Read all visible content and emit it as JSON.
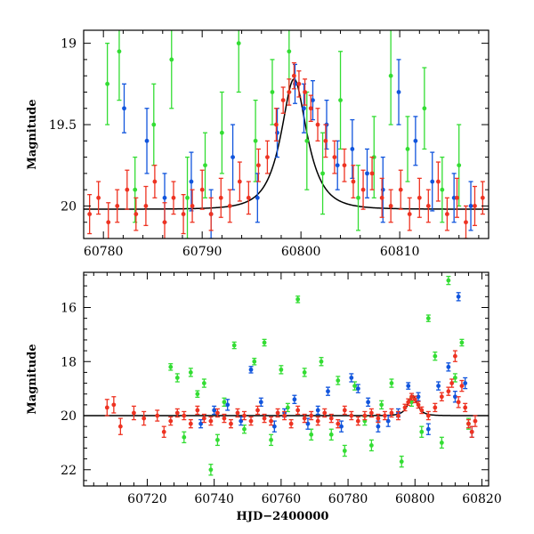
{
  "chart_data": [
    {
      "type": "scatter",
      "panel": "top",
      "title": "",
      "xlabel": "",
      "ylabel": "Magnitude",
      "xlim": [
        60778,
        60819
      ],
      "ylim": [
        20.2,
        18.92
      ],
      "y_inverted": true,
      "xticks": [
        60780,
        60790,
        60800,
        60810
      ],
      "yticks": [
        19,
        19.5,
        20
      ],
      "ytick_labels": [
        "19",
        "19.5",
        "20"
      ],
      "grid": false,
      "legend": "none",
      "model_curve": {
        "baseline": 20.02,
        "peak_mag": 19.22,
        "t0": 60799.3,
        "tE": 2.2,
        "color": "#000000"
      },
      "series": [
        {
          "color": "#33dd33",
          "x": [
            60780.4,
            60781.6,
            60783.2,
            60785.1,
            60786.9,
            60788.5,
            60790.3,
            60792.0,
            60793.7,
            60795.4,
            60797.1,
            60798.8,
            60800.6,
            60802.2,
            60804.0,
            60805.8,
            60807.4,
            60809.1,
            60810.8,
            60812.5,
            60814.3,
            60816.0
          ],
          "y": [
            19.25,
            19.05,
            19.9,
            19.5,
            19.1,
            19.95,
            19.75,
            19.55,
            19.0,
            19.6,
            19.3,
            19.05,
            19.6,
            19.8,
            19.35,
            19.95,
            19.7,
            19.2,
            19.65,
            19.4,
            19.9,
            19.75
          ],
          "err": [
            0.25,
            0.3,
            0.2,
            0.25,
            0.3,
            0.25,
            0.2,
            0.25,
            0.3,
            0.25,
            0.2,
            0.25,
            0.3,
            0.25,
            0.3,
            0.2,
            0.25,
            0.3,
            0.2,
            0.25,
            0.2,
            0.25
          ]
        },
        {
          "color": "#1155dd",
          "x": [
            60782.1,
            60784.4,
            60786.2,
            60788.9,
            60790.9,
            60793.1,
            60795.6,
            60797.6,
            60799.4,
            60800.3,
            60801.2,
            60802.6,
            60803.7,
            60805.2,
            60806.7,
            60808.3,
            60809.9,
            60811.6,
            60813.3,
            60815.5,
            60817.2
          ],
          "y": [
            19.4,
            19.6,
            19.95,
            19.85,
            20.05,
            19.7,
            19.95,
            19.55,
            19.25,
            19.4,
            19.35,
            19.5,
            19.75,
            19.65,
            19.8,
            19.9,
            19.3,
            19.6,
            19.85,
            19.95,
            20.0
          ],
          "err": [
            0.15,
            0.2,
            0.15,
            0.18,
            0.15,
            0.2,
            0.15,
            0.15,
            0.12,
            0.15,
            0.12,
            0.15,
            0.15,
            0.18,
            0.15,
            0.2,
            0.2,
            0.15,
            0.18,
            0.15,
            0.15
          ]
        },
        {
          "color": "#ee3322",
          "x": [
            60778.6,
            60779.5,
            60780.5,
            60781.4,
            60782.4,
            60783.3,
            60784.3,
            60785.2,
            60786.2,
            60787.1,
            60788.1,
            60789.0,
            60790.0,
            60790.9,
            60791.9,
            60792.8,
            60793.8,
            60794.7,
            60795.7,
            60796.6,
            60797.5,
            60798.2,
            60798.8,
            60799.3,
            60799.8,
            60800.4,
            60801.0,
            60801.7,
            60802.5,
            60803.4,
            60804.4,
            60805.3,
            60806.3,
            60807.2,
            60808.2,
            60809.1,
            60810.1,
            60811.0,
            60812.0,
            60812.9,
            60813.9,
            60814.8,
            60815.8,
            60816.7,
            60817.6,
            60818.4
          ],
          "y": [
            20.05,
            19.95,
            20.1,
            20.0,
            19.9,
            20.05,
            20.0,
            19.85,
            20.1,
            19.95,
            20.05,
            20.0,
            19.9,
            20.05,
            19.95,
            20.0,
            19.85,
            19.95,
            19.75,
            19.7,
            19.5,
            19.35,
            19.3,
            19.2,
            19.25,
            19.3,
            19.4,
            19.5,
            19.6,
            19.7,
            19.75,
            19.85,
            19.9,
            19.8,
            19.95,
            20.0,
            19.9,
            20.05,
            19.95,
            20.0,
            19.85,
            20.05,
            19.95,
            20.1,
            20.0,
            19.95
          ],
          "err": [
            0.12,
            0.1,
            0.12,
            0.1,
            0.12,
            0.1,
            0.12,
            0.1,
            0.12,
            0.1,
            0.12,
            0.1,
            0.12,
            0.1,
            0.12,
            0.1,
            0.12,
            0.1,
            0.1,
            0.1,
            0.1,
            0.08,
            0.08,
            0.08,
            0.08,
            0.08,
            0.08,
            0.1,
            0.1,
            0.1,
            0.1,
            0.1,
            0.12,
            0.1,
            0.12,
            0.1,
            0.12,
            0.1,
            0.12,
            0.1,
            0.12,
            0.1,
            0.12,
            0.1,
            0.12,
            0.1
          ]
        }
      ]
    },
    {
      "type": "scatter",
      "panel": "bottom",
      "title": "",
      "xlabel": "HJD−2400000",
      "ylabel": "Magnitude",
      "xlim": [
        60701,
        60822
      ],
      "ylim": [
        22.6,
        14.7
      ],
      "y_inverted": true,
      "xticks": [
        60720,
        60740,
        60760,
        60780,
        60800,
        60820
      ],
      "yticks": [
        16,
        18,
        20,
        22
      ],
      "ytick_labels": [
        "16",
        "18",
        "20",
        "22"
      ],
      "grid": false,
      "legend": "none",
      "model_curve": {
        "baseline": 20.0,
        "peak_mag": 19.25,
        "t0": 60799.3,
        "tE": 2.2,
        "color": "#000000"
      },
      "series": [
        {
          "color": "#33dd33",
          "x": [
            60727,
            60729,
            60731,
            60733,
            60735,
            60737,
            60739,
            60741,
            60743,
            60746,
            60749,
            60752,
            60755,
            60757,
            60760,
            60762,
            60765,
            60767,
            60769,
            60772,
            60775,
            60777,
            60779,
            60782,
            60785,
            60787,
            60790,
            60793,
            60796,
            60799,
            60802,
            60804,
            60806,
            60808,
            60810,
            60812,
            60814,
            60816
          ],
          "y": [
            18.2,
            18.6,
            20.8,
            18.4,
            19.2,
            18.8,
            22.0,
            20.9,
            19.5,
            17.4,
            20.5,
            18.0,
            17.3,
            20.9,
            18.3,
            19.7,
            15.7,
            18.4,
            20.7,
            18.0,
            20.7,
            18.7,
            21.3,
            18.9,
            20.2,
            21.1,
            19.6,
            18.8,
            21.7,
            19.5,
            20.6,
            16.4,
            17.8,
            21.0,
            15.0,
            18.6,
            17.3,
            20.3
          ],
          "err": [
            0.12,
            0.15,
            0.2,
            0.15,
            0.12,
            0.15,
            0.2,
            0.2,
            0.15,
            0.12,
            0.15,
            0.12,
            0.12,
            0.2,
            0.15,
            0.15,
            0.12,
            0.15,
            0.2,
            0.15,
            0.2,
            0.15,
            0.2,
            0.15,
            0.15,
            0.2,
            0.15,
            0.15,
            0.2,
            0.15,
            0.2,
            0.12,
            0.15,
            0.2,
            0.15,
            0.15,
            0.12,
            0.2
          ]
        },
        {
          "color": "#1155dd",
          "x": [
            60736,
            60740,
            60744,
            60748,
            60751,
            60754,
            60758,
            60761,
            60764,
            60768,
            60771,
            60774,
            60778,
            60781,
            60783,
            60786,
            60789,
            60792,
            60795,
            60798,
            60801,
            60804,
            60807,
            60810,
            60812,
            60813,
            60815,
            60817
          ],
          "y": [
            20.3,
            19.8,
            19.6,
            20.2,
            18.3,
            19.5,
            20.4,
            19.9,
            19.4,
            20.3,
            19.8,
            19.1,
            20.4,
            18.6,
            19.0,
            19.5,
            20.4,
            20.2,
            19.9,
            18.9,
            19.3,
            20.5,
            18.9,
            18.2,
            19.3,
            15.6,
            18.8,
            20.6
          ],
          "err": [
            0.15,
            0.15,
            0.2,
            0.15,
            0.12,
            0.15,
            0.2,
            0.15,
            0.15,
            0.2,
            0.15,
            0.15,
            0.2,
            0.15,
            0.15,
            0.15,
            0.2,
            0.2,
            0.15,
            0.12,
            0.15,
            0.2,
            0.15,
            0.15,
            0.2,
            0.15,
            0.2,
            0.2
          ]
        },
        {
          "color": "#ee3322",
          "x": [
            60708,
            60710,
            60712,
            60716,
            60719,
            60723,
            60725,
            60727,
            60729,
            60731,
            60733,
            60735,
            60737,
            60739,
            60741,
            60743,
            60745,
            60747,
            60749,
            60751,
            60753,
            60755,
            60757,
            60759,
            60761,
            60763,
            60765,
            60767,
            60769,
            60771,
            60773,
            60775,
            60777,
            60779,
            60781,
            60783,
            60785,
            60787,
            60789,
            60791,
            60793,
            60795,
            60797,
            60798,
            60799,
            60800,
            60801,
            60802,
            60804,
            60806,
            60808,
            60810,
            60811,
            60812,
            60813,
            60814,
            60815,
            60816,
            60817,
            60818
          ],
          "y": [
            19.7,
            19.6,
            20.4,
            19.9,
            20.1,
            20.0,
            20.6,
            20.2,
            19.9,
            20.0,
            20.3,
            19.8,
            20.1,
            20.2,
            19.9,
            20.1,
            20.3,
            19.9,
            20.0,
            20.2,
            19.8,
            20.1,
            20.2,
            19.9,
            20.0,
            20.3,
            19.8,
            20.1,
            20.0,
            20.2,
            19.9,
            20.1,
            20.3,
            19.8,
            20.0,
            20.2,
            20.0,
            19.9,
            20.1,
            20.0,
            19.9,
            20.0,
            19.7,
            19.5,
            19.3,
            19.4,
            19.6,
            19.8,
            20.0,
            19.7,
            19.3,
            19.1,
            18.8,
            17.8,
            19.5,
            18.9,
            19.7,
            20.3,
            20.6,
            20.2
          ],
          "err": [
            0.3,
            0.3,
            0.3,
            0.25,
            0.25,
            0.2,
            0.2,
            0.15,
            0.15,
            0.15,
            0.15,
            0.15,
            0.15,
            0.15,
            0.15,
            0.15,
            0.15,
            0.15,
            0.15,
            0.15,
            0.15,
            0.15,
            0.15,
            0.15,
            0.15,
            0.15,
            0.15,
            0.15,
            0.15,
            0.15,
            0.15,
            0.15,
            0.15,
            0.15,
            0.15,
            0.15,
            0.15,
            0.15,
            0.15,
            0.15,
            0.15,
            0.15,
            0.12,
            0.12,
            0.12,
            0.12,
            0.12,
            0.12,
            0.15,
            0.15,
            0.15,
            0.15,
            0.15,
            0.2,
            0.2,
            0.2,
            0.15,
            0.15,
            0.2,
            0.2
          ]
        }
      ]
    }
  ]
}
